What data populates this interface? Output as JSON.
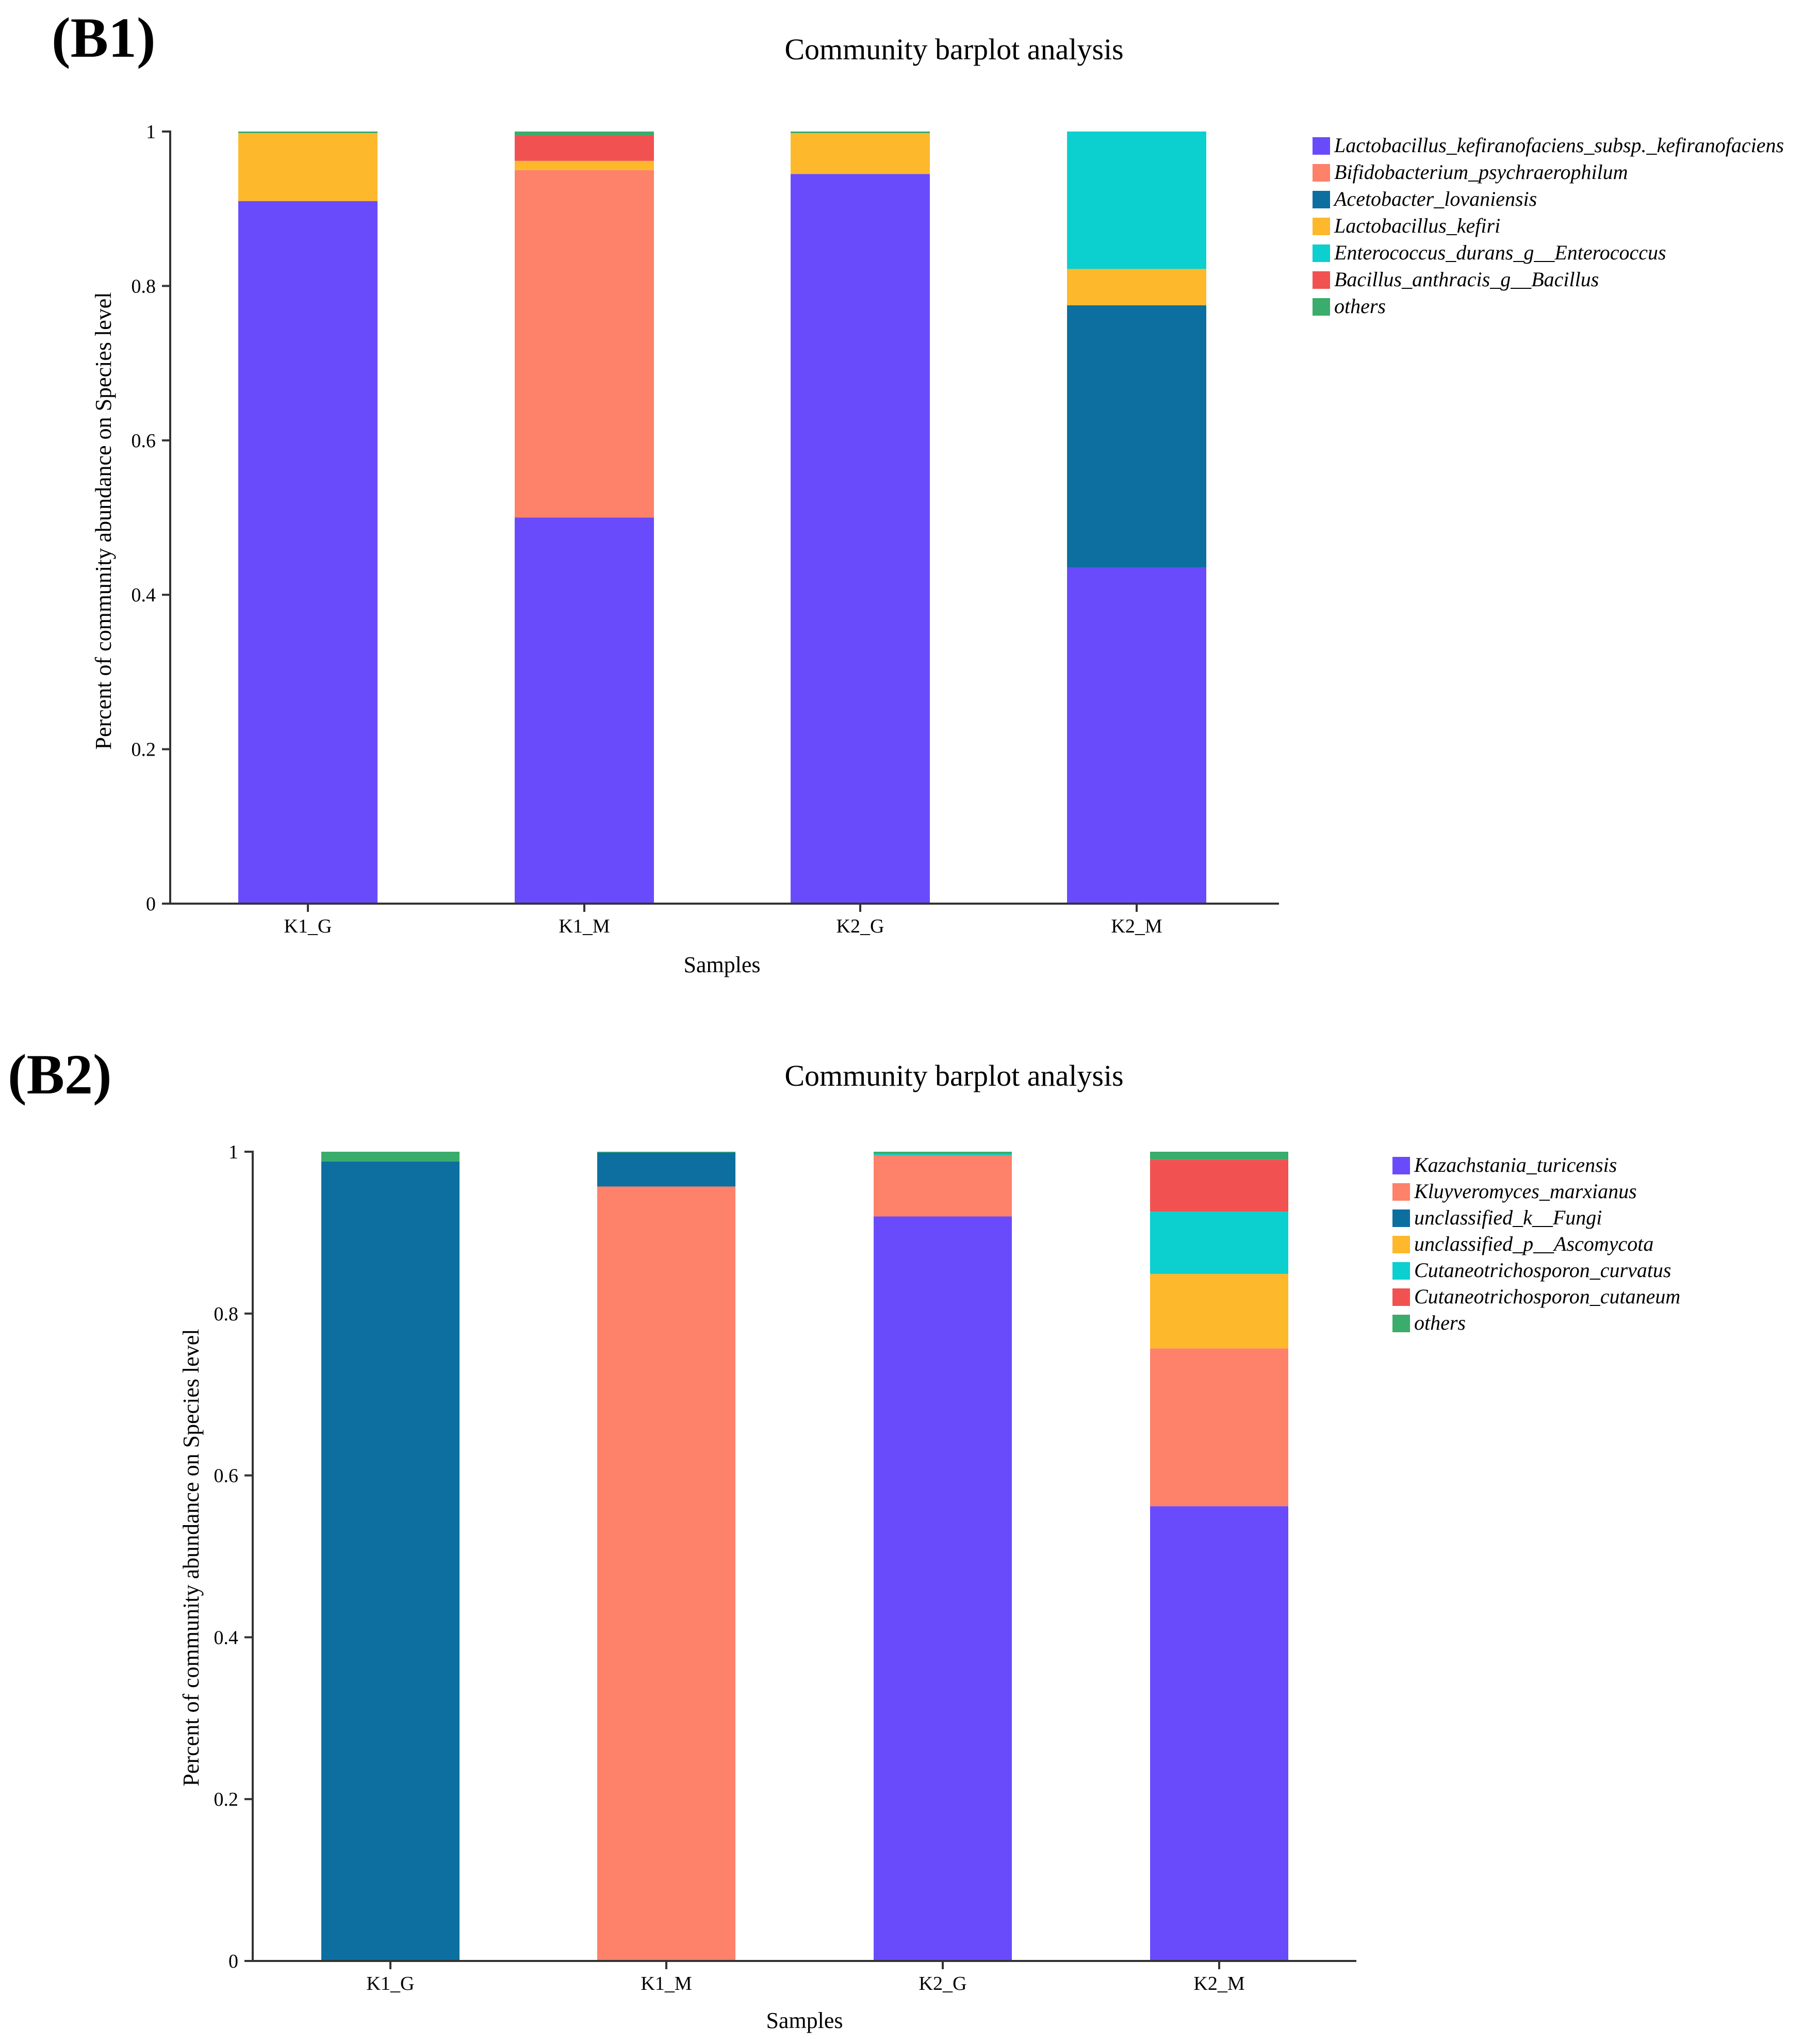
{
  "chart_data": [
    {
      "type": "bar",
      "stacked": true,
      "panel_label": "(B1)",
      "title": "Community barplot analysis",
      "xlabel": "Samples",
      "ylabel": "Percent of community abundance on Species level",
      "ylim": [
        0,
        1
      ],
      "yticks": [
        "0",
        "0.2",
        "0.4",
        "0.6",
        "0.8",
        "1"
      ],
      "categories": [
        "K1_G",
        "K1_M",
        "K2_G",
        "K2_M"
      ],
      "series": [
        {
          "name": "Lactobacillus_kefiranofaciens_subsp._kefiranofaciens",
          "color": "#6a4bfc",
          "values": [
            0.91,
            0.5,
            0.945,
            0.435
          ]
        },
        {
          "name": "Bifidobacterium_psychraerophilum",
          "color": "#fe816a",
          "values": [
            0.0,
            0.45,
            0.0,
            0.0
          ]
        },
        {
          "name": "Acetobacter_lovaniensis",
          "color": "#0c6fa0",
          "values": [
            0.0,
            0.0,
            0.0,
            0.34
          ]
        },
        {
          "name": "Lactobacillus_kefiri",
          "color": "#fdb82c",
          "values": [
            0.088,
            0.012,
            0.053,
            0.047
          ]
        },
        {
          "name": "Enterococcus_durans_g__Enterococcus",
          "color": "#0ccfcf",
          "values": [
            0.0,
            0.0,
            0.0,
            0.178
          ]
        },
        {
          "name": "Bacillus_anthracis_g__Bacillus",
          "color": "#f25151",
          "values": [
            0.0,
            0.033,
            0.0,
            0.0
          ]
        },
        {
          "name": "others",
          "color": "#3aac6b",
          "values": [
            0.002,
            0.005,
            0.002,
            0.0
          ]
        }
      ]
    },
    {
      "type": "bar",
      "stacked": true,
      "panel_label": "(B2)",
      "title": "Community barplot analysis",
      "xlabel": "Samples",
      "ylabel": "Percent of community abundance on Species level",
      "ylim": [
        0,
        1
      ],
      "yticks": [
        "0",
        "0.2",
        "0.4",
        "0.6",
        "0.8",
        "1"
      ],
      "categories": [
        "K1_G",
        "K1_M",
        "K2_G",
        "K2_M"
      ],
      "series": [
        {
          "name": "Kazachstania_turicensis",
          "color": "#6a4bfc",
          "values": [
            0.0,
            0.0,
            0.92,
            0.562
          ]
        },
        {
          "name": "Kluyveromyces_marxianus",
          "color": "#fe816a",
          "values": [
            0.0,
            0.957,
            0.075,
            0.195
          ]
        },
        {
          "name": "unclassified_k__Fungi",
          "color": "#0c6fa0",
          "values": [
            0.988,
            0.042,
            0.0,
            0.0
          ]
        },
        {
          "name": "unclassified_p__Ascomycota",
          "color": "#fdb82c",
          "values": [
            0.0,
            0.0,
            0.0,
            0.092
          ]
        },
        {
          "name": "Cutaneotrichosporon_curvatus",
          "color": "#0ccfcf",
          "values": [
            0.0,
            0.0,
            0.002,
            0.077
          ]
        },
        {
          "name": "Cutaneotrichosporon_cutaneum",
          "color": "#f25151",
          "values": [
            0.0,
            0.0,
            0.0,
            0.064
          ]
        },
        {
          "name": "others",
          "color": "#3aac6b",
          "values": [
            0.012,
            0.001,
            0.003,
            0.01
          ]
        }
      ]
    }
  ]
}
